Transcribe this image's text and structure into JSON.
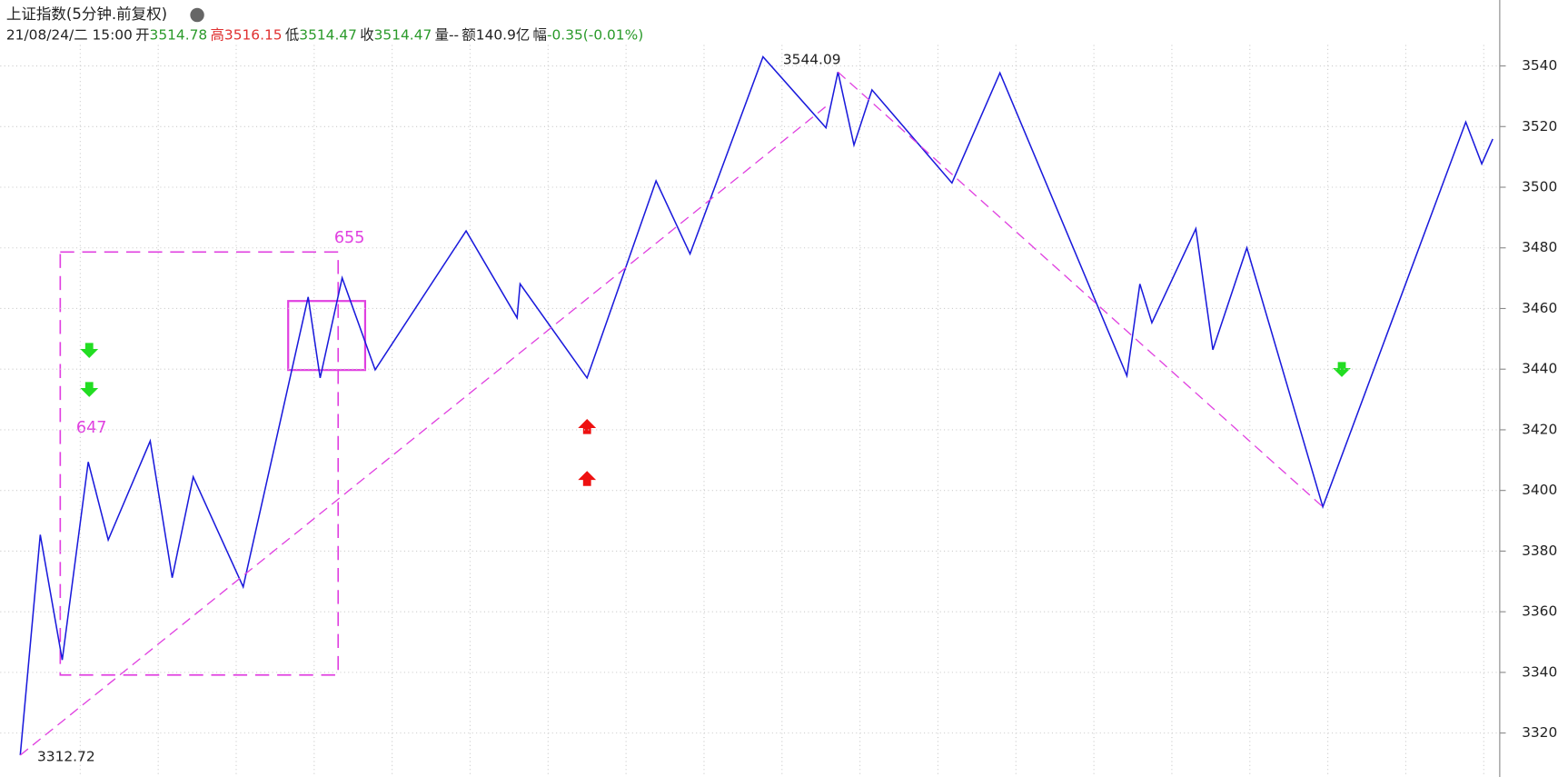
{
  "header": {
    "title": "上证指数(5分钟.前复权)",
    "date": "21/08/24/二 15:00",
    "open_label": "开",
    "open": "3514.78",
    "high_label": "高",
    "high": "3516.15",
    "low_label": "低",
    "low": "3514.47",
    "close_label": "收",
    "close": "3514.47",
    "volume": "量--",
    "amount": "额140.9亿",
    "change_label": "幅",
    "change": "-0.35(-0.01%)"
  },
  "chart_data": {
    "type": "line",
    "annotations": [
      "3544.09",
      "3312.72",
      "655",
      "647"
    ],
    "xlim": [
      0,
      1495
    ],
    "ylim": [
      3305.5,
      3546.9
    ],
    "yticks": [
      3320,
      3340,
      3360,
      3380,
      3400,
      3420,
      3440,
      3460,
      3480,
      3500,
      3520,
      3540
    ],
    "grid": true,
    "series": [
      {
        "color": "#1a1adc",
        "values": [
          3312.7,
          3385.4,
          3344.1,
          3409.4,
          3383.7,
          3416.3,
          3371.2,
          3404.5,
          3368.2,
          3463.8,
          3437.1,
          3470.1,
          3439.8,
          3485.6,
          3456.9,
          3468.1,
          3437.1,
          3502.1,
          3478.0,
          3543.0,
          3519.6,
          3538.0,
          3513.9,
          3532.1,
          3501.4,
          3537.7,
          3437.8,
          3468.1,
          3455.3,
          3486.3,
          3446.4,
          3480.0,
          3394.6,
          3521.5,
          3507.7,
          3515.9
        ],
        "x": [
          20,
          40,
          62,
          88,
          108,
          150,
          172,
          193,
          243,
          308,
          320,
          342,
          375,
          466,
          517,
          520,
          587,
          656,
          690,
          763,
          826,
          838,
          854,
          872,
          952,
          1000,
          1127,
          1140,
          1152,
          1196,
          1213,
          1247,
          1323,
          1466,
          1482,
          1493
        ]
      },
      {
        "color": "#e040e0",
        "dash": true,
        "values": [
          3312.7,
          3527.7
        ],
        "x": [
          20,
          830
        ]
      },
      {
        "color": "#e040e0",
        "dash": true,
        "values": [
          3538.0,
          3394.6
        ],
        "x": [
          838,
          1323
        ]
      }
    ]
  }
}
